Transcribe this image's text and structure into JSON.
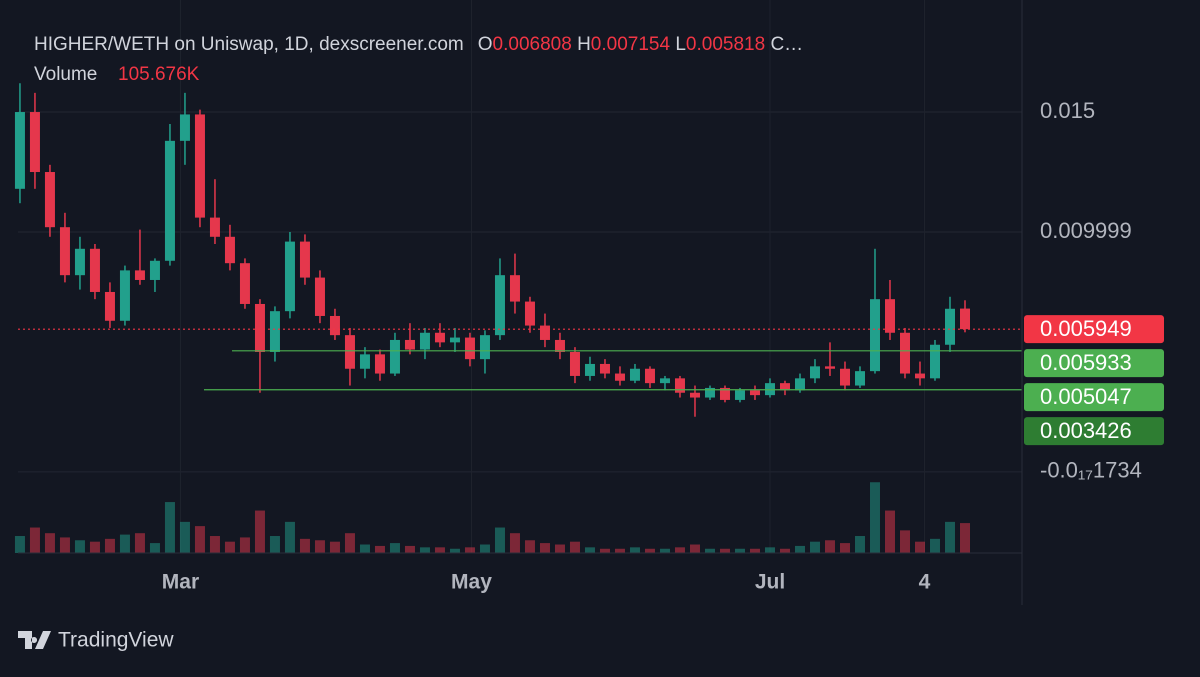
{
  "chart_data": {
    "type": "candlestick",
    "title": "HIGHER/WETH on Uniswap, 1D, dexscreener.com",
    "ohlc_letters": [
      "O",
      "H",
      "L",
      "C…"
    ],
    "volume_title": "Volume",
    "volume_label": "105.676K",
    "up_color": "#22a08c",
    "down_color": "#e5374c",
    "open": [
      0.0118,
      0.015,
      0.0125,
      0.0102,
      0.0082,
      0.0093,
      0.0075,
      0.0063,
      0.0084,
      0.008,
      0.0088,
      0.0138,
      0.0149,
      0.0106,
      0.0098,
      0.0087,
      0.007,
      0.005,
      0.0067,
      0.0096,
      0.0081,
      0.0065,
      0.0057,
      0.0043,
      0.0049,
      0.0041,
      0.0055,
      0.0051,
      0.0058,
      0.0054,
      0.0056,
      0.0047,
      0.0057,
      0.0082,
      0.0071,
      0.0061,
      0.0055,
      0.005,
      0.004,
      0.0045,
      0.0041,
      0.0038,
      0.0043,
      0.0037,
      0.0039,
      0.0033,
      0.0031,
      0.0035,
      0.003,
      0.0034,
      0.0032,
      0.0037,
      0.0034,
      0.0039,
      0.0044,
      0.0043,
      0.0036,
      0.0042,
      0.0072,
      0.0058,
      0.0041,
      0.0039,
      0.0053,
      0.006808
    ],
    "high": [
      0.0162,
      0.0158,
      0.0128,
      0.0108,
      0.0098,
      0.0095,
      0.0079,
      0.0086,
      0.0101,
      0.0089,
      0.0145,
      0.0158,
      0.0151,
      0.0122,
      0.0103,
      0.0089,
      0.0072,
      0.0069,
      0.01,
      0.0099,
      0.0084,
      0.0068,
      0.006,
      0.0052,
      0.0051,
      0.0058,
      0.0062,
      0.006,
      0.0062,
      0.006,
      0.0058,
      0.0059,
      0.0089,
      0.0091,
      0.0073,
      0.0066,
      0.0058,
      0.0052,
      0.0048,
      0.0047,
      0.0044,
      0.0045,
      0.0044,
      0.004,
      0.004,
      0.0036,
      0.0036,
      0.0036,
      0.0035,
      0.0036,
      0.0039,
      0.0038,
      0.0041,
      0.0047,
      0.0054,
      0.0046,
      0.0044,
      0.0093,
      0.008,
      0.006,
      0.0046,
      0.0055,
      0.0073,
      0.007154
    ],
    "low": [
      0.0112,
      0.0118,
      0.0098,
      0.0079,
      0.0076,
      0.0072,
      0.006,
      0.0061,
      0.0078,
      0.0075,
      0.0086,
      0.0128,
      0.0102,
      0.0095,
      0.0084,
      0.0068,
      0.0033,
      0.0046,
      0.0064,
      0.0078,
      0.0062,
      0.0055,
      0.0036,
      0.0039,
      0.0038,
      0.004,
      0.0049,
      0.0047,
      0.0052,
      0.005,
      0.0044,
      0.0041,
      0.0055,
      0.0066,
      0.0058,
      0.0052,
      0.0047,
      0.0037,
      0.0038,
      0.0039,
      0.0036,
      0.0037,
      0.0035,
      0.0034,
      0.0031,
      0.0023,
      0.003,
      0.0029,
      0.0029,
      0.003,
      0.0031,
      0.0032,
      0.0033,
      0.0037,
      0.004,
      0.0034,
      0.0035,
      0.0041,
      0.0055,
      0.0039,
      0.0036,
      0.0038,
      0.005,
      0.005818
    ],
    "close": [
      0.015,
      0.0125,
      0.0102,
      0.0082,
      0.0093,
      0.0075,
      0.0063,
      0.0084,
      0.008,
      0.0088,
      0.0138,
      0.0149,
      0.0106,
      0.0098,
      0.0087,
      0.007,
      0.005,
      0.0067,
      0.0096,
      0.0081,
      0.0065,
      0.0057,
      0.0043,
      0.0049,
      0.0041,
      0.0055,
      0.0051,
      0.0058,
      0.0054,
      0.0056,
      0.0047,
      0.0057,
      0.0082,
      0.0071,
      0.0061,
      0.0055,
      0.005,
      0.004,
      0.0045,
      0.0041,
      0.0038,
      0.0043,
      0.0037,
      0.0039,
      0.0033,
      0.0031,
      0.0035,
      0.003,
      0.0034,
      0.0032,
      0.0037,
      0.0034,
      0.0039,
      0.0044,
      0.0043,
      0.0036,
      0.0042,
      0.0072,
      0.0058,
      0.0041,
      0.0039,
      0.0053,
      0.0068,
      0.005949
    ],
    "volume": [
      60000,
      90000,
      70000,
      55000,
      45000,
      40000,
      50000,
      65000,
      70000,
      35000,
      180000,
      110000,
      95000,
      60000,
      40000,
      55000,
      150000,
      60000,
      110000,
      50000,
      45000,
      40000,
      70000,
      30000,
      25000,
      35000,
      25000,
      20000,
      20000,
      15000,
      20000,
      30000,
      90000,
      70000,
      45000,
      35000,
      30000,
      40000,
      20000,
      15000,
      15000,
      20000,
      15000,
      15000,
      20000,
      30000,
      15000,
      15000,
      15000,
      15000,
      20000,
      15000,
      25000,
      40000,
      45000,
      35000,
      60000,
      250000,
      150000,
      80000,
      40000,
      50000,
      110000,
      105676
    ],
    "vlim": [
      0,
      1000000
    ],
    "ylim": [
      -0.00338,
      0.01967
    ],
    "yticks": [
      0.015,
      0.009999,
      {
        "value": -1.734e-21,
        "label": "-0.0₁₇1734"
      }
    ],
    "xlim": [
      -0.13,
      66.8
    ],
    "xticks": [
      {
        "value": 10.7,
        "label": "Mar"
      },
      {
        "value": 30.1,
        "label": "May"
      },
      {
        "value": 50,
        "label": "Jul"
      },
      {
        "value": 60.3,
        "label": "4"
      }
    ],
    "price_lines": [
      {
        "value": 0.005949,
        "color": "#f23645"
      },
      {
        "value": 0.005933,
        "color": "#4caf50"
      },
      {
        "value": 0.005047,
        "color": "#4caf50"
      },
      {
        "value": 0.003426,
        "color": "#2e7d32"
      }
    ],
    "grid": true
  },
  "footer": {
    "brand": "TradingView"
  }
}
